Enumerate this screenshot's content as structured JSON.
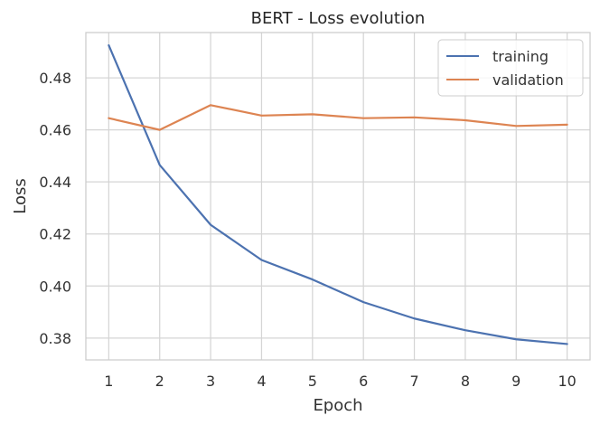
{
  "chart_data": {
    "type": "line",
    "title": "BERT - Loss evolution",
    "xlabel": "Epoch",
    "ylabel": "Loss",
    "x": [
      1,
      2,
      3,
      4,
      5,
      6,
      7,
      8,
      9,
      10
    ],
    "xlim": [
      0.55,
      10.45
    ],
    "ylim": [
      0.3716,
      0.4974
    ],
    "xticks": [
      1,
      2,
      3,
      4,
      5,
      6,
      7,
      8,
      9,
      10
    ],
    "yticks": [
      0.38,
      0.4,
      0.42,
      0.44,
      0.46,
      0.48
    ],
    "ytick_labels": [
      "0.38",
      "0.40",
      "0.42",
      "0.44",
      "0.46",
      "0.48"
    ],
    "grid": true,
    "legend_position": "top-right",
    "series": [
      {
        "name": "training",
        "color": "#4c72b0",
        "values": [
          0.4925,
          0.4465,
          0.4235,
          0.41,
          0.4025,
          0.3938,
          0.3875,
          0.383,
          0.3795,
          0.3777
        ]
      },
      {
        "name": "validation",
        "color": "#dd8452",
        "values": [
          0.4645,
          0.46,
          0.4695,
          0.4655,
          0.466,
          0.4645,
          0.4648,
          0.4637,
          0.4615,
          0.462
        ]
      }
    ]
  }
}
